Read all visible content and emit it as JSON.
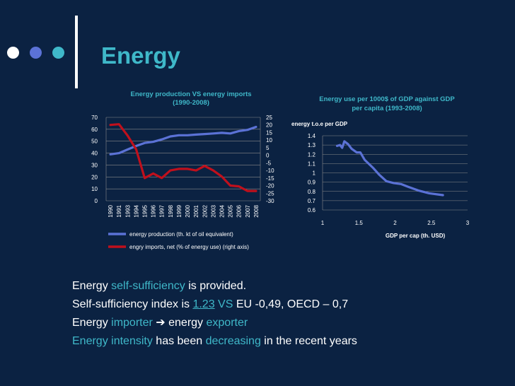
{
  "slide": {
    "title": "Energy",
    "accent_color": "#3fb8c9",
    "background_color": "#0b2242",
    "dot_colors": [
      "#ffffff",
      "#5b72d6",
      "#3fb8c9"
    ]
  },
  "bullets": [
    {
      "parts": [
        {
          "t": "Energy "
        },
        {
          "t": "self-sufficiency",
          "hl": true
        },
        {
          "t": "  is  provided."
        }
      ]
    },
    {
      "parts": [
        {
          "t": "Self-sufficiency index is "
        },
        {
          "t": "1.23",
          "hl": true,
          "ul": true
        },
        {
          "t": " "
        },
        {
          "t": "VS",
          "hl": true
        },
        {
          "t": " EU -0,49, OECD – 0,7"
        }
      ]
    },
    {
      "parts": [
        {
          "t": "Energy "
        },
        {
          "t": "importer",
          "hl": true
        },
        {
          "t": " ➔ ",
          "arrow": true
        },
        {
          "t": "energy "
        },
        {
          "t": "exporter",
          "hl": true
        }
      ]
    },
    {
      "parts": [
        {
          "t": "Energy intensity",
          "hl": true
        },
        {
          "t": " has been "
        },
        {
          "t": "decreasing",
          "hl": true
        },
        {
          "t": "  in the recent years"
        }
      ]
    }
  ],
  "chart_data": [
    {
      "type": "line",
      "title": "Energy production VS energy imports\n(1990-2008)",
      "x": [
        "1990",
        "1991",
        "1993",
        "1994",
        "1995",
        "1996",
        "1997",
        "1998",
        "1999",
        "2000",
        "2001",
        "2002",
        "2003",
        "2004",
        "2005",
        "2006",
        "2007",
        "2008"
      ],
      "series": [
        {
          "name": "energy production (th. kt of oil equivalent)",
          "axis": "left",
          "color": "#5b72d6",
          "values": [
            39,
            40,
            43,
            46,
            48.5,
            49.5,
            51.5,
            54,
            55,
            55,
            55.5,
            56,
            56.5,
            57,
            56.5,
            58.5,
            59.5,
            62
          ]
        },
        {
          "name": "engry imports, net (% of energy use) (right axis)",
          "axis": "right",
          "color": "#c0101c",
          "values": [
            20,
            20.5,
            13,
            4,
            -15,
            -12,
            -15,
            -10,
            -9,
            -9,
            -10,
            -7,
            -10,
            -14,
            -20,
            -20.5,
            -23.5,
            -23.5
          ]
        }
      ],
      "ylim_left": [
        0,
        70
      ],
      "yticks_left": [
        0,
        10,
        20,
        30,
        40,
        50,
        60,
        70
      ],
      "ylim_right": [
        -30,
        25
      ],
      "yticks_right": [
        25,
        20,
        15,
        10,
        5,
        0,
        -5,
        -10,
        -15,
        -20,
        -25,
        -30
      ],
      "grid": "horizontal",
      "legend": "bottom"
    },
    {
      "type": "line",
      "title": "Energy use per 1000$ of GDP against GDP\nper capita (1993-2008)",
      "xlabel": "GDP per cap (th. USD)",
      "ylabel": "energy t.o.e per GDP",
      "xlim": [
        1,
        3
      ],
      "xticks": [
        "1",
        "1.5",
        "2",
        "2.5",
        "3"
      ],
      "ylim": [
        0.6,
        1.4
      ],
      "yticks": [
        "1.4",
        "1.3",
        "1.2",
        "1.1",
        "1",
        "0.9",
        "0.8",
        "0.7",
        "0.6"
      ],
      "series": [
        {
          "color": "#5b72d6",
          "points": [
            [
              1.2,
              1.29
            ],
            [
              1.24,
              1.3
            ],
            [
              1.27,
              1.27
            ],
            [
              1.3,
              1.34
            ],
            [
              1.35,
              1.31
            ],
            [
              1.4,
              1.26
            ],
            [
              1.47,
              1.22
            ],
            [
              1.52,
              1.22
            ],
            [
              1.58,
              1.14
            ],
            [
              1.7,
              1.05
            ],
            [
              1.78,
              0.98
            ],
            [
              1.88,
              0.91
            ],
            [
              1.98,
              0.89
            ],
            [
              2.08,
              0.88
            ],
            [
              2.18,
              0.85
            ],
            [
              2.32,
              0.81
            ],
            [
              2.47,
              0.78
            ],
            [
              2.66,
              0.76
            ]
          ]
        }
      ],
      "grid": "horizontal"
    }
  ]
}
